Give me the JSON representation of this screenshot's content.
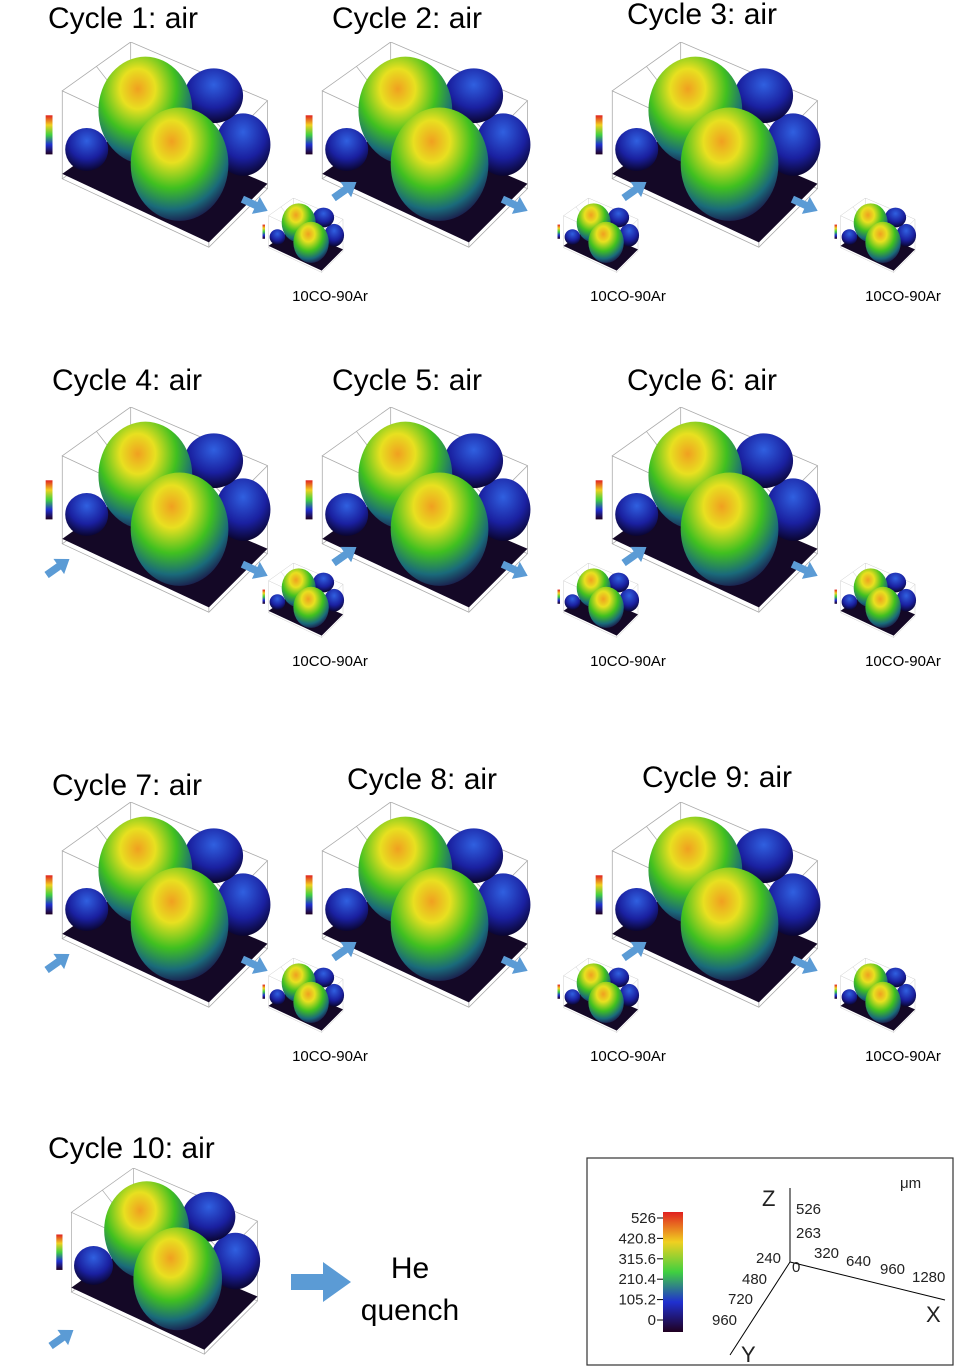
{
  "cycles": [
    {
      "title": "Cycle 1: air",
      "reduced_label": "10CO-90Ar"
    },
    {
      "title": "Cycle 2: air",
      "reduced_label": "10CO-90Ar"
    },
    {
      "title": "Cycle 3: air",
      "reduced_label": "10CO-90Ar"
    },
    {
      "title": "Cycle 4: air",
      "reduced_label": "10CO-90Ar"
    },
    {
      "title": "Cycle 5: air",
      "reduced_label": "10CO-90Ar"
    },
    {
      "title": "Cycle 6: air",
      "reduced_label": "10CO-90Ar"
    },
    {
      "title": "Cycle 7: air",
      "reduced_label": "10CO-90Ar"
    },
    {
      "title": "Cycle 8: air",
      "reduced_label": "10CO-90Ar"
    },
    {
      "title": "Cycle 9: air",
      "reduced_label": "10CO-90Ar"
    }
  ],
  "final": {
    "title": "Cycle 10: air",
    "step_lines": [
      "He",
      "quench"
    ]
  },
  "legend": {
    "colorbar_ticks": [
      "526",
      "420.8",
      "315.6",
      "210.4",
      "105.2",
      "0"
    ],
    "unit": "μm",
    "z_axis": {
      "label": "Z",
      "ticks": [
        "526",
        "263"
      ]
    },
    "x_axis": {
      "label": "X",
      "ticks": [
        "320",
        "640",
        "960",
        "1280"
      ]
    },
    "y_axis": {
      "label": "Y",
      "ticks": [
        "240",
        "480",
        "720",
        "960"
      ]
    },
    "origin": "0"
  }
}
